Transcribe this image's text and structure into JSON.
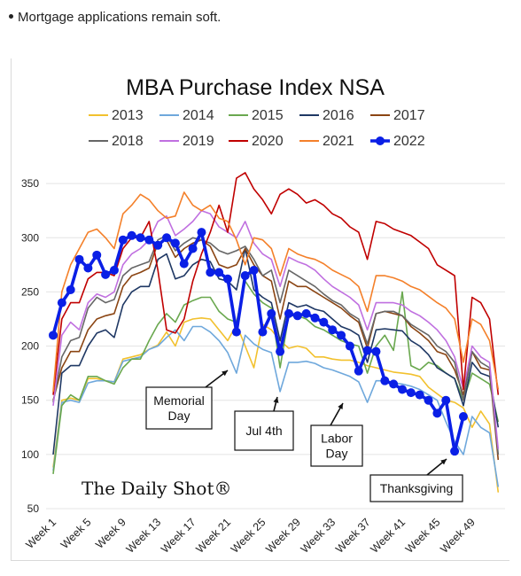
{
  "note": {
    "text": "Mortgage applications remain soft."
  },
  "chart_data": {
    "type": "line",
    "title": "MBA Purchase Index NSA",
    "xlabel": "",
    "ylabel": "",
    "ylim": [
      50,
      375
    ],
    "yticks": [
      50,
      100,
      150,
      200,
      250,
      300,
      350
    ],
    "x_tick_labels": [
      "Week 1",
      "Week 5",
      "Week 9",
      "Week 13",
      "Week 17",
      "Week 21",
      "Week 25",
      "Week 29",
      "Week 33",
      "Week 37",
      "Week 41",
      "Week 45",
      "Week 49"
    ],
    "x_tick_weeks": [
      1,
      5,
      9,
      13,
      17,
      21,
      25,
      29,
      33,
      37,
      41,
      45,
      49
    ],
    "grid": "horizontal",
    "legend_position": "top",
    "series": [
      {
        "name": "2013",
        "color": "#f2c12e",
        "width": 1.6,
        "values": [
          88,
          150,
          152,
          150,
          170,
          170,
          168,
          167,
          188,
          190,
          192,
          197,
          201,
          213,
          200,
          222,
          225,
          226,
          225,
          215,
          205,
          220,
          200,
          180,
          220,
          215,
          205,
          198,
          200,
          198,
          190,
          190,
          188,
          187,
          187,
          185,
          182,
          180,
          178,
          176,
          175,
          174,
          172,
          162,
          156,
          150,
          148,
          143,
          125,
          140,
          128,
          65
        ]
      },
      {
        "name": "2014",
        "color": "#6fa8dc",
        "width": 1.6,
        "values": [
          85,
          148,
          150,
          148,
          166,
          168,
          168,
          167,
          186,
          188,
          190,
          197,
          200,
          208,
          215,
          205,
          218,
          218,
          213,
          205,
          194,
          175,
          210,
          202,
          197,
          194,
          158,
          185,
          185,
          186,
          184,
          180,
          178,
          175,
          172,
          167,
          148,
          168,
          168,
          166,
          165,
          163,
          160,
          155,
          150,
          130,
          112,
          100,
          135,
          125,
          120,
          70
        ]
      },
      {
        "name": "2015",
        "color": "#6aa84f",
        "width": 1.6,
        "values": [
          82,
          145,
          155,
          150,
          172,
          172,
          168,
          165,
          180,
          188,
          188,
          205,
          220,
          230,
          222,
          238,
          242,
          245,
          245,
          232,
          225,
          222,
          260,
          248,
          240,
          235,
          180,
          228,
          228,
          225,
          218,
          215,
          210,
          205,
          202,
          200,
          175,
          200,
          210,
          196,
          250,
          182,
          178,
          185,
          182,
          175,
          170,
          150,
          175,
          170,
          165,
          130
        ]
      },
      {
        "name": "2016",
        "color": "#1f3864",
        "width": 1.6,
        "values": [
          100,
          175,
          182,
          182,
          200,
          212,
          215,
          208,
          238,
          250,
          255,
          255,
          280,
          285,
          262,
          265,
          275,
          280,
          278,
          262,
          260,
          252,
          290,
          252,
          245,
          240,
          205,
          240,
          236,
          238,
          234,
          232,
          225,
          218,
          215,
          210,
          185,
          215,
          216,
          215,
          214,
          205,
          200,
          192,
          180,
          175,
          170,
          145,
          185,
          175,
          172,
          125
        ]
      },
      {
        "name": "2017",
        "color": "#8b4513",
        "width": 1.6,
        "values": [
          150,
          180,
          195,
          195,
          215,
          225,
          228,
          230,
          255,
          265,
          268,
          272,
          295,
          298,
          282,
          290,
          295,
          298,
          292,
          275,
          272,
          275,
          290,
          275,
          265,
          260,
          225,
          260,
          255,
          255,
          250,
          245,
          240,
          235,
          228,
          222,
          198,
          230,
          232,
          230,
          228,
          218,
          212,
          205,
          195,
          192,
          178,
          155,
          195,
          180,
          178,
          95
        ]
      },
      {
        "name": "2018",
        "color": "#666666",
        "width": 1.6,
        "values": [
          148,
          190,
          205,
          208,
          235,
          245,
          240,
          243,
          265,
          272,
          275,
          278,
          298,
          302,
          288,
          295,
          300,
          298,
          295,
          288,
          285,
          288,
          292,
          280,
          265,
          270,
          240,
          270,
          265,
          260,
          255,
          248,
          242,
          238,
          230,
          225,
          202,
          230,
          232,
          232,
          228,
          220,
          215,
          210,
          200,
          195,
          185,
          150,
          195,
          185,
          180,
          100
        ]
      },
      {
        "name": "2019",
        "color": "#c070e0",
        "width": 1.6,
        "values": [
          145,
          210,
          222,
          215,
          240,
          248,
          245,
          250,
          275,
          285,
          290,
          298,
          315,
          320,
          302,
          308,
          315,
          325,
          322,
          310,
          305,
          300,
          315,
          295,
          285,
          280,
          255,
          282,
          278,
          275,
          270,
          262,
          255,
          250,
          245,
          238,
          215,
          240,
          240,
          240,
          238,
          232,
          228,
          222,
          215,
          205,
          190,
          160,
          200,
          190,
          185,
          105
        ]
      },
      {
        "name": "2020",
        "color": "#c00000",
        "width": 1.6,
        "values": [
          155,
          225,
          240,
          240,
          262,
          268,
          268,
          265,
          290,
          300,
          300,
          315,
          270,
          215,
          212,
          225,
          260,
          285,
          305,
          330,
          305,
          355,
          360,
          345,
          335,
          322,
          340,
          345,
          340,
          332,
          335,
          330,
          322,
          318,
          310,
          305,
          280,
          315,
          313,
          308,
          305,
          302,
          296,
          290,
          275,
          270,
          265,
          160,
          245,
          240,
          225,
          155
        ]
      },
      {
        "name": "2021",
        "color": "#f4802a",
        "width": 1.6,
        "values": [
          158,
          250,
          275,
          290,
          305,
          308,
          300,
          290,
          322,
          330,
          340,
          335,
          325,
          318,
          320,
          342,
          330,
          325,
          330,
          318,
          315,
          298,
          275,
          300,
          298,
          290,
          265,
          290,
          285,
          282,
          280,
          276,
          270,
          266,
          262,
          255,
          232,
          265,
          265,
          263,
          260,
          255,
          252,
          246,
          240,
          235,
          225,
          185,
          225,
          220,
          205,
          160
        ]
      },
      {
        "name": "2022",
        "color": "#0a1fe6",
        "width": 3.6,
        "markers": true,
        "values": [
          210,
          240,
          252,
          280,
          272,
          284,
          266,
          270,
          298,
          302,
          300,
          298,
          293,
          300,
          295,
          276,
          290,
          305,
          268,
          268,
          262,
          213,
          265,
          270,
          213,
          230,
          195,
          230,
          228,
          230,
          226,
          222,
          215,
          210,
          200,
          177,
          196,
          195,
          168,
          165,
          160,
          157,
          155,
          150,
          138,
          150,
          103,
          135
        ]
      }
    ],
    "annotations": [
      {
        "text": [
          "Memorial",
          "Day"
        ],
        "week": 22,
        "value": 178
      },
      {
        "text": [
          "Jul 4th"
        ],
        "week": 27,
        "value": 155
      },
      {
        "text": [
          "Labor",
          "Day"
        ],
        "week": 36,
        "value": 148
      },
      {
        "text": [
          "Thanksgiving"
        ],
        "week": 47,
        "value": 96
      }
    ],
    "logo": "The Daily Shot®"
  }
}
